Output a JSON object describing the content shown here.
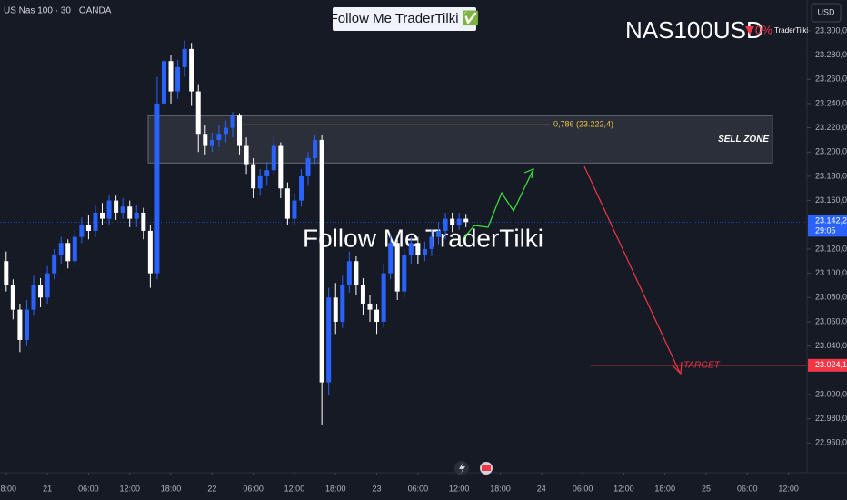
{
  "chart_data": {
    "type": "candlestick",
    "title": "US Nas 100 · 30 · OANDA",
    "banner": "Follow Me TraderTilki ✅",
    "watermark": "Follow Me TraderTilki",
    "symbol": "NAS100USD",
    "change": {
      "value": 0,
      "label": "0%"
    },
    "author": "TraderTilki",
    "currency": "USD",
    "up_color": "#2962ff",
    "down_color": "#ffffff",
    "x": [
      0,
      1,
      2,
      3,
      4,
      5,
      6,
      7,
      8,
      9,
      10,
      11,
      12,
      13,
      14,
      15,
      16,
      17,
      18,
      19,
      20,
      21,
      22,
      23,
      24,
      25,
      26,
      27,
      28,
      29,
      30,
      31,
      32,
      33,
      34,
      35,
      36,
      37,
      38,
      39,
      40,
      41,
      42,
      43,
      44,
      45,
      46,
      47,
      48,
      49,
      50,
      51,
      52,
      53,
      54,
      55,
      56,
      57,
      58,
      59,
      60,
      61,
      62,
      63,
      64,
      65,
      66,
      67
    ],
    "open": [
      23110,
      23090,
      23070,
      23045,
      23070,
      23090,
      23080,
      23100,
      23115,
      23125,
      23110,
      23130,
      23140,
      23135,
      23150,
      23145,
      23160,
      23150,
      23155,
      23145,
      23150,
      23135,
      23100,
      23240,
      23275,
      23250,
      23270,
      23285,
      23250,
      23215,
      23205,
      23210,
      23215,
      23220,
      23230,
      23205,
      23190,
      23170,
      23180,
      23185,
      23205,
      23170,
      23145,
      23160,
      23180,
      23195,
      23210,
      23010,
      23080,
      23060,
      23090,
      23110,
      23090,
      23075,
      23070,
      23060,
      23100,
      23125,
      23085,
      23115,
      23125,
      23115,
      23120,
      23130,
      23135,
      23145,
      23140,
      23145
    ],
    "high": [
      23118,
      23095,
      23075,
      23078,
      23098,
      23096,
      23106,
      23120,
      23130,
      23128,
      23136,
      23146,
      23148,
      23156,
      23158,
      23165,
      23164,
      23162,
      23160,
      23156,
      23154,
      23140,
      23262,
      23285,
      23280,
      23276,
      23292,
      23290,
      23256,
      23222,
      23216,
      23222,
      23226,
      23233,
      23232,
      23212,
      23195,
      23186,
      23192,
      23212,
      23208,
      23175,
      23166,
      23186,
      23200,
      23214,
      23214,
      23088,
      23092,
      23098,
      23118,
      23114,
      23096,
      23082,
      23075,
      23108,
      23132,
      23128,
      23120,
      23130,
      23130,
      23126,
      23136,
      23142,
      23150,
      23150,
      23150,
      23149
    ],
    "low": [
      23085,
      23062,
      23035,
      23040,
      23065,
      23072,
      23075,
      23095,
      23108,
      23104,
      23106,
      23125,
      23128,
      23130,
      23140,
      23140,
      23144,
      23145,
      23138,
      23138,
      23128,
      23088,
      23095,
      23232,
      23240,
      23244,
      23262,
      23238,
      23200,
      23198,
      23200,
      23204,
      23208,
      23212,
      23198,
      23182,
      23162,
      23164,
      23172,
      23180,
      23162,
      23140,
      23140,
      23155,
      23172,
      23190,
      22975,
      23000,
      23050,
      23055,
      23084,
      23082,
      23066,
      23060,
      23050,
      23055,
      23095,
      23078,
      23080,
      23108,
      23108,
      23110,
      23114,
      23124,
      23128,
      23134,
      23136,
      23138
    ],
    "close": [
      23090,
      23070,
      23045,
      23070,
      23090,
      23080,
      23100,
      23115,
      23125,
      23110,
      23130,
      23140,
      23135,
      23150,
      23145,
      23160,
      23150,
      23155,
      23145,
      23150,
      23135,
      23100,
      23240,
      23275,
      23250,
      23270,
      23285,
      23250,
      23215,
      23205,
      23210,
      23215,
      23220,
      23230,
      23205,
      23190,
      23170,
      23180,
      23185,
      23205,
      23170,
      23145,
      23160,
      23180,
      23195,
      23210,
      23010,
      23080,
      23060,
      23090,
      23110,
      23090,
      23075,
      23070,
      23060,
      23100,
      23125,
      23085,
      23115,
      23125,
      23115,
      23120,
      23130,
      23135,
      23145,
      23140,
      23145,
      23142.2
    ],
    "xlim": [
      -0.9,
      116.7
    ],
    "xticks": [
      {
        "value": 0,
        "label": "18:00"
      },
      {
        "value": 6,
        "label": "21"
      },
      {
        "value": 12,
        "label": "06:00"
      },
      {
        "value": 18,
        "label": "12:00"
      },
      {
        "value": 24,
        "label": "18:00"
      },
      {
        "value": 30,
        "label": "22"
      },
      {
        "value": 36,
        "label": "06:00"
      },
      {
        "value": 42,
        "label": "12:00"
      },
      {
        "value": 48,
        "label": "18:00"
      },
      {
        "value": 54,
        "label": "23"
      },
      {
        "value": 60,
        "label": "06:00"
      },
      {
        "value": 66,
        "label": "12:00"
      },
      {
        "value": 72,
        "label": "18:00"
      },
      {
        "value": 78,
        "label": "24"
      },
      {
        "value": 84,
        "label": "06:00"
      },
      {
        "value": 90,
        "label": "12:00"
      },
      {
        "value": 96,
        "label": "18:00"
      },
      {
        "value": 102,
        "label": "25"
      },
      {
        "value": 108,
        "label": "06:00"
      },
      {
        "value": 114,
        "label": "12:00"
      }
    ],
    "ylim": [
      22935.5,
      23325.4
    ],
    "yticks": [
      {
        "value": 23300,
        "label": "23.300,0"
      },
      {
        "value": 23280,
        "label": "23.280,0"
      },
      {
        "value": 23260,
        "label": "23.260,0"
      },
      {
        "value": 23240,
        "label": "23.240,0"
      },
      {
        "value": 23220,
        "label": "23.220,0"
      },
      {
        "value": 23200,
        "label": "23.200,0"
      },
      {
        "value": 23180,
        "label": "23.180,0"
      },
      {
        "value": 23160,
        "label": "23.160,0"
      },
      {
        "value": 23120,
        "label": "23.120,0"
      },
      {
        "value": 23100,
        "label": "23.100,0"
      },
      {
        "value": 23080,
        "label": "23.080,0"
      },
      {
        "value": 23060,
        "label": "23.060,0"
      },
      {
        "value": 23040,
        "label": "23.040,0"
      },
      {
        "value": 23000,
        "label": "23.000,0"
      },
      {
        "value": 22980,
        "label": "22.980,0"
      },
      {
        "value": 22960,
        "label": "22.960,0"
      }
    ],
    "sell_zone": {
      "label": "SELL ZONE",
      "low": 23191,
      "high": 23230
    },
    "fib_level": {
      "value": 23222.4,
      "label": "0,786 (23.222,4)",
      "color": "#e8c547"
    },
    "target": {
      "value": 23024.1,
      "label": "TARGET",
      "price_label": "23.024,1",
      "color": "#f23645"
    },
    "last_price": {
      "value": 23142.2,
      "label": "23.142,2",
      "countdown": "29:05",
      "color": "#2962ff"
    }
  }
}
